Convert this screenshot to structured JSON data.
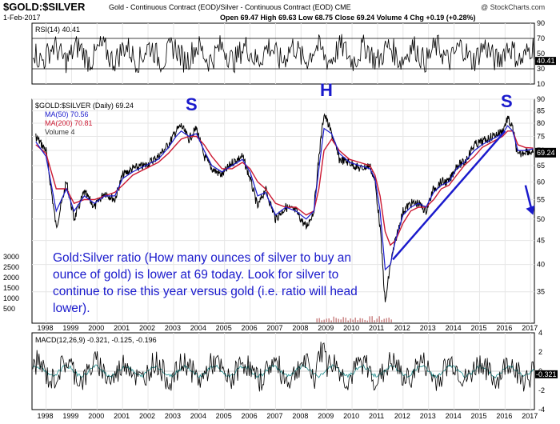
{
  "header": {
    "title": "$GOLD:$SILVER",
    "subtitle": "Gold - Continuous Contract (EOD)/Silver - Continuous Contract (EOD) CME",
    "date": "1-Feb-2017",
    "ohlc": "Open 69.47  High 69.63  Low 68.75  Close 69.24  Volume 4  Chg +0.19 (+0.28%)",
    "credit": "@ StockCharts.com"
  },
  "annotation": "Gold:Silver ratio (How many ounces of silver to buy an ounce of gold) is lower at 69 today. Look for silver to continue to rise this year versus gold (i.e. ratio will head lower).",
  "pattern_labels": [
    "S",
    "H",
    "S"
  ],
  "colors": {
    "price": "#000000",
    "ma50": "#1a1acc",
    "ma200": "#cc1a33",
    "trend": "#1a1acc",
    "macd_signal": "#1a8c8c",
    "accent": "#1a1acc"
  },
  "chart_data": [
    {
      "type": "line",
      "title": "RSI(14) 40.41",
      "ylim": [
        10,
        90
      ],
      "yticks": [
        10,
        30,
        50,
        70,
        90
      ],
      "reference_lines": [
        30,
        70
      ],
      "last_value_label": "40.41"
    },
    {
      "type": "line",
      "title": "$GOLD:$SILVER (Daily) 69.24",
      "legend": [
        "MA(50) 70.56",
        "MA(200) 70.81",
        "Volume 4"
      ],
      "legend_placement": "top-left",
      "y_scale": "log",
      "ylim": [
        30,
        90
      ],
      "yticks": [
        35,
        40,
        45,
        50,
        55,
        60,
        65,
        70,
        75,
        80,
        85,
        90
      ],
      "last_value_label": "69.24",
      "volume_ticks": [
        500,
        1000,
        1500,
        2000,
        2500,
        3000
      ],
      "x": [
        1997.6,
        1998.0,
        1998.4,
        1998.8,
        1999.1,
        1999.5,
        1999.9,
        2000.3,
        2000.7,
        2001.0,
        2001.4,
        2001.9,
        2002.4,
        2002.8,
        2003.1,
        2003.3,
        2003.6,
        2003.9,
        2004.2,
        2004.5,
        2004.9,
        2005.3,
        2005.7,
        2006.0,
        2006.3,
        2006.6,
        2007.0,
        2007.4,
        2007.8,
        2008.2,
        2008.5,
        2008.7,
        2008.9,
        2009.2,
        2009.5,
        2009.9,
        2010.3,
        2010.7,
        2010.9,
        2011.1,
        2011.3,
        2011.5,
        2011.7,
        2012.0,
        2012.3,
        2012.6,
        2012.9,
        2013.2,
        2013.5,
        2013.8,
        2014.1,
        2014.4,
        2014.8,
        2015.1,
        2015.5,
        2015.9,
        2016.1,
        2016.3,
        2016.5,
        2016.8,
        2017.1
      ],
      "values": [
        75,
        70,
        48,
        60,
        50,
        57,
        53,
        57,
        55,
        62,
        64,
        65,
        68,
        72,
        77,
        79,
        74,
        78,
        68,
        64,
        62,
        66,
        68,
        61,
        53,
        58,
        50,
        53,
        52,
        48,
        52,
        68,
        84,
        76,
        67,
        66,
        64,
        65,
        60,
        48,
        33,
        40,
        45,
        52,
        54,
        54,
        52,
        58,
        60,
        60,
        65,
        66,
        72,
        73,
        75,
        77,
        82,
        78,
        68,
        70,
        69.24
      ],
      "ma50": [
        73,
        68,
        52,
        58,
        52,
        56,
        54,
        56,
        56,
        61,
        63,
        65,
        67,
        71,
        75,
        77,
        75,
        76,
        70,
        65,
        63,
        65,
        67,
        63,
        56,
        57,
        51,
        53,
        52,
        50,
        52,
        64,
        78,
        76,
        69,
        66,
        65,
        64,
        61,
        52,
        39,
        40,
        45,
        51,
        53,
        54,
        53,
        57,
        59,
        60,
        64,
        66,
        70,
        72,
        74,
        76,
        79,
        77,
        70,
        70,
        70.56
      ],
      "ma200": [
        72,
        69,
        58,
        58,
        54,
        55,
        55,
        56,
        57,
        59,
        62,
        64,
        66,
        69,
        72,
        74,
        75,
        75,
        72,
        68,
        64,
        64,
        66,
        64,
        60,
        58,
        54,
        53,
        53,
        51,
        52,
        58,
        70,
        74,
        70,
        67,
        66,
        65,
        62,
        56,
        47,
        44,
        45,
        49,
        52,
        53,
        53,
        55,
        58,
        59,
        62,
        65,
        68,
        71,
        73,
        75,
        77,
        77,
        72,
        71,
        70.81
      ],
      "trendline": {
        "x": [
          2011.6,
          2016.0
        ],
        "y": [
          41,
          77
        ]
      },
      "arrow": {
        "x": [
          2016.8,
          2017.1
        ],
        "y": [
          59,
          51
        ]
      }
    },
    {
      "type": "line",
      "title": "MACD(12,26,9) -0.321, -0.125, -0.196",
      "ylim": [
        -4,
        4
      ],
      "yticks": [
        -4,
        -2,
        0,
        2,
        4
      ],
      "last_value_label": "-0.321"
    }
  ],
  "x_axis_labels": [
    "1998",
    "1999",
    "2000",
    "2001",
    "2002",
    "2003",
    "2004",
    "2005",
    "2006",
    "2007",
    "2008",
    "2009",
    "2010",
    "2011",
    "2012",
    "2013",
    "2014",
    "2015",
    "2016",
    "2017"
  ]
}
